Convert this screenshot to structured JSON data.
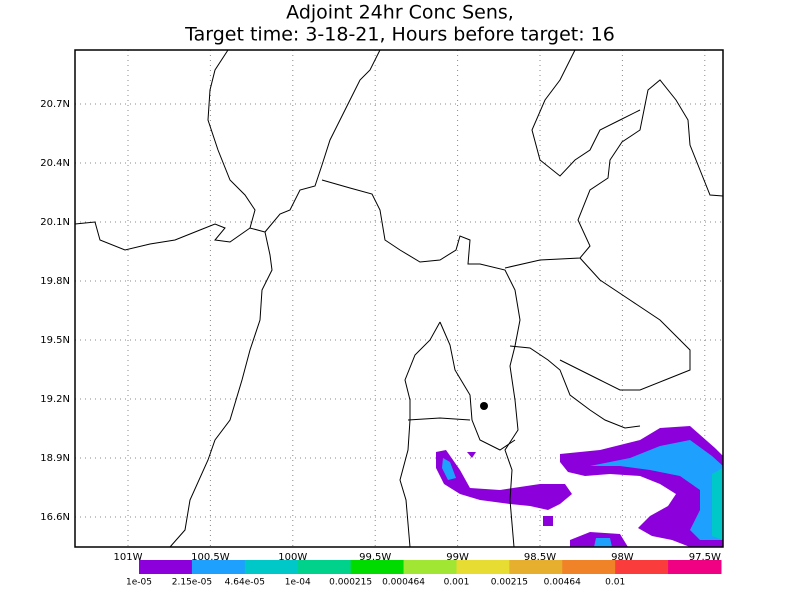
{
  "map": {
    "title": [
      "Adjoint 24hr Conc Sens,",
      "Target time: 3-18-21, Hours before target: 16"
    ],
    "lat_labels": [
      "20.7N",
      "20.4N",
      "20.1N",
      "19.8N",
      "19.5N",
      "19.2N",
      "18.9N",
      "16.6N"
    ],
    "lon_labels": [
      "101W",
      "100.5W",
      "100W",
      "99.5W",
      "99W",
      "98.5W",
      "98W",
      "97.5W"
    ],
    "colorbar": {
      "labels": [
        "1e-05",
        "2.15e-05",
        "4.64e-05",
        "1e-04",
        "0.000215",
        "0.000464",
        "0.001",
        "0.00215",
        "0.00464",
        "0.01"
      ],
      "colors": [
        "#8c00dc",
        "#1ea0ff",
        "#00c8c8",
        "#00d28c",
        "#00dc00",
        "#a0e632",
        "#e6dc32",
        "#e6af2d",
        "#f08228",
        "#fa3c3c",
        "#f00082"
      ]
    }
  }
}
